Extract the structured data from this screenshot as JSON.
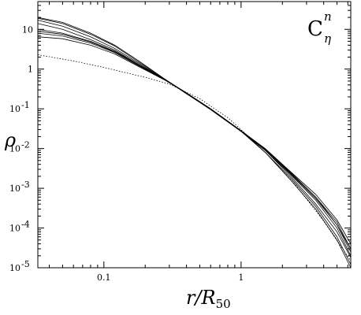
{
  "chart_data": {
    "type": "line",
    "title": "",
    "annotation": {
      "base": "C",
      "sup": "n",
      "sub": "η"
    },
    "xlabel": {
      "main": "r/R",
      "sub": "50"
    },
    "ylabel": "ρ",
    "xscale": "log",
    "yscale": "log",
    "xlim": [
      0.033,
      6.3
    ],
    "ylim": [
      1e-05,
      50
    ],
    "grid": false,
    "legend": "none",
    "x_ticks": [
      {
        "value": 0.1,
        "label": "0.1"
      },
      {
        "value": 1,
        "label": "1"
      }
    ],
    "y_ticks": [
      {
        "value": 10,
        "base": "10",
        "exp": ""
      },
      {
        "value": 1,
        "base": "1",
        "exp": ""
      },
      {
        "value": 0.1,
        "base": "10",
        "exp": "-1"
      },
      {
        "value": 0.01,
        "base": "10",
        "exp": "-2"
      },
      {
        "value": 0.001,
        "base": "10",
        "exp": "-3"
      },
      {
        "value": 0.0001,
        "base": "10",
        "exp": "-4"
      },
      {
        "value": 1e-05,
        "base": "10",
        "exp": "-5"
      }
    ],
    "series": [
      {
        "style": "solid",
        "x": [
          0.033,
          0.05,
          0.08,
          0.12,
          0.18,
          0.28,
          0.4,
          0.6,
          1.0,
          1.5,
          2.3,
          3.5,
          5.0,
          6.3
        ],
        "y": [
          20.0,
          15.0,
          8.0,
          4.0,
          1.6,
          0.55,
          0.25,
          0.1,
          0.028,
          0.008,
          0.0018,
          0.00035,
          6e-05,
          1.2e-05
        ]
      },
      {
        "style": "solid",
        "x": [
          0.033,
          0.05,
          0.08,
          0.12,
          0.18,
          0.28,
          0.4,
          0.6,
          1.0,
          1.5,
          2.3,
          3.5,
          5.0,
          6.3
        ],
        "y": [
          19.0,
          14.0,
          7.5,
          3.8,
          1.5,
          0.55,
          0.24,
          0.1,
          0.027,
          0.009,
          0.002,
          0.0004,
          8e-05,
          1.8e-05
        ]
      },
      {
        "style": "solid",
        "x": [
          0.033,
          0.05,
          0.08,
          0.12,
          0.18,
          0.28,
          0.4,
          0.6,
          1.0,
          1.5,
          2.3,
          3.5,
          5.0,
          6.3
        ],
        "y": [
          17.0,
          12.0,
          6.5,
          3.3,
          1.4,
          0.54,
          0.24,
          0.095,
          0.027,
          0.008,
          0.0016,
          0.0003,
          5e-05,
          1e-05
        ]
      },
      {
        "style": "solid",
        "x": [
          0.033,
          0.05,
          0.08,
          0.12,
          0.18,
          0.28,
          0.4,
          0.6,
          1.0,
          1.5,
          2.3,
          3.5,
          5.0,
          6.3
        ],
        "y": [
          14.0,
          10.0,
          5.5,
          3.0,
          1.3,
          0.53,
          0.25,
          0.1,
          0.028,
          0.0095,
          0.0025,
          0.0006,
          0.00012,
          3e-05
        ]
      },
      {
        "style": "solid",
        "x": [
          0.033,
          0.05,
          0.08,
          0.12,
          0.18,
          0.28,
          0.4,
          0.6,
          1.0,
          1.5,
          2.3,
          3.5,
          5.0,
          6.3
        ],
        "y": [
          10.0,
          8.0,
          5.0,
          2.8,
          1.3,
          0.55,
          0.24,
          0.1,
          0.027,
          0.009,
          0.0022,
          0.0005,
          0.0001,
          2e-05
        ]
      },
      {
        "style": "solid",
        "x": [
          0.033,
          0.05,
          0.08,
          0.12,
          0.18,
          0.28,
          0.4,
          0.6,
          1.0,
          1.5,
          2.3,
          3.5,
          5.0,
          6.3
        ],
        "y": [
          9.0,
          7.5,
          4.8,
          2.7,
          1.25,
          0.54,
          0.25,
          0.1,
          0.028,
          0.0095,
          0.0023,
          0.00055,
          0.00012,
          2.5e-05
        ]
      },
      {
        "style": "solid",
        "x": [
          0.033,
          0.05,
          0.08,
          0.12,
          0.18,
          0.28,
          0.4,
          0.6,
          1.0,
          1.5,
          2.3,
          3.5,
          5.0,
          6.3
        ],
        "y": [
          8.0,
          6.8,
          4.5,
          2.6,
          1.2,
          0.53,
          0.25,
          0.1,
          0.028,
          0.01,
          0.0026,
          0.0007,
          0.00016,
          4e-05
        ]
      },
      {
        "style": "solid",
        "x": [
          0.033,
          0.05,
          0.08,
          0.12,
          0.18,
          0.28,
          0.4,
          0.6,
          1.0,
          1.5,
          2.3,
          3.5,
          5.0,
          6.3
        ],
        "y": [
          6.5,
          5.8,
          4.0,
          2.4,
          1.15,
          0.52,
          0.25,
          0.1,
          0.028,
          0.0098,
          0.0024,
          0.0006,
          0.00014,
          3e-05
        ]
      },
      {
        "style": "dotted",
        "x": [
          0.033,
          0.06,
          0.1,
          0.2,
          0.3,
          0.5,
          0.8,
          1.0,
          1.5,
          2.5,
          4.0,
          6.3
        ],
        "y": [
          2.3,
          1.6,
          1.1,
          0.62,
          0.42,
          0.18,
          0.06,
          0.03,
          0.008,
          0.0012,
          0.00015,
          1.5e-05
        ]
      }
    ]
  }
}
